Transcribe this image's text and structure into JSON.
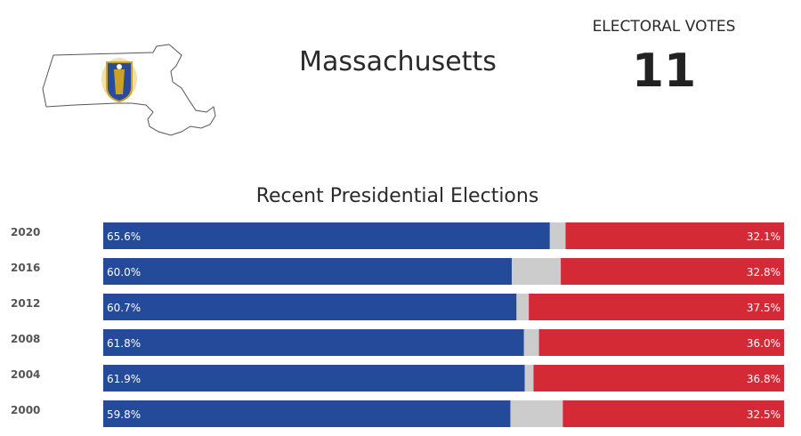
{
  "state": {
    "name": "Massachusetts"
  },
  "electoral": {
    "label": "ELECTORAL VOTES",
    "value": "11"
  },
  "chart_data": {
    "type": "bar",
    "orientation": "horizontal-stacked",
    "title": "Recent Presidential Elections",
    "categories": [
      "2020",
      "2016",
      "2012",
      "2008",
      "2004",
      "2000"
    ],
    "series": [
      {
        "values": [
          65.6,
          60.0,
          60.7,
          61.8,
          61.9,
          59.8
        ],
        "labels": [
          "65.6%",
          "60.0%",
          "60.7%",
          "61.8%",
          "61.9%",
          "59.8%"
        ],
        "color": "#244a9a"
      },
      {
        "values": [
          2.3,
          7.2,
          1.8,
          2.2,
          1.3,
          7.7
        ],
        "color": "#cccccc"
      },
      {
        "values": [
          32.1,
          32.8,
          37.5,
          36.0,
          36.8,
          32.5
        ],
        "labels": [
          "32.1%",
          "32.8%",
          "37.5%",
          "36.0%",
          "36.8%",
          "32.5%"
        ],
        "color": "#d42a35"
      }
    ],
    "xlim": [
      0,
      100
    ],
    "grid": false,
    "legend": "none"
  }
}
